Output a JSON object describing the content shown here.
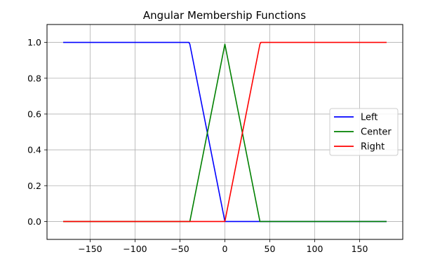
{
  "chart_data": {
    "type": "line",
    "title": "Angular Membership Functions",
    "xlabel": "",
    "ylabel": "",
    "xlim": [
      -198,
      198
    ],
    "ylim": [
      -0.1,
      1.1
    ],
    "x_ticks": [
      -150,
      -100,
      -50,
      0,
      50,
      100,
      150
    ],
    "x_tick_labels": [
      "−150",
      "−100",
      "−50",
      "0",
      "50",
      "100",
      "150"
    ],
    "y_ticks": [
      0.0,
      0.2,
      0.4,
      0.6,
      0.8,
      1.0
    ],
    "y_tick_labels": [
      "0.0",
      "0.2",
      "0.4",
      "0.6",
      "0.8",
      "1.0"
    ],
    "grid": true,
    "legend_position": "center-right",
    "series": [
      {
        "name": "Left",
        "color": "#0000ff",
        "x": [
          -180,
          -40,
          -39,
          0,
          40,
          180
        ],
        "y": [
          1.0,
          1.0,
          0.99,
          0.0,
          0.0,
          0.0
        ]
      },
      {
        "name": "Center",
        "color": "#008000",
        "x": [
          -180,
          -40,
          -39,
          0,
          39,
          40,
          180
        ],
        "y": [
          0.0,
          0.0,
          0.0,
          0.99,
          0.0,
          0.0,
          0.0
        ]
      },
      {
        "name": "Right",
        "color": "#ff0000",
        "x": [
          -180,
          0,
          39,
          40,
          180
        ],
        "y": [
          0.0,
          0.0,
          0.99,
          1.0,
          1.0
        ]
      }
    ]
  }
}
